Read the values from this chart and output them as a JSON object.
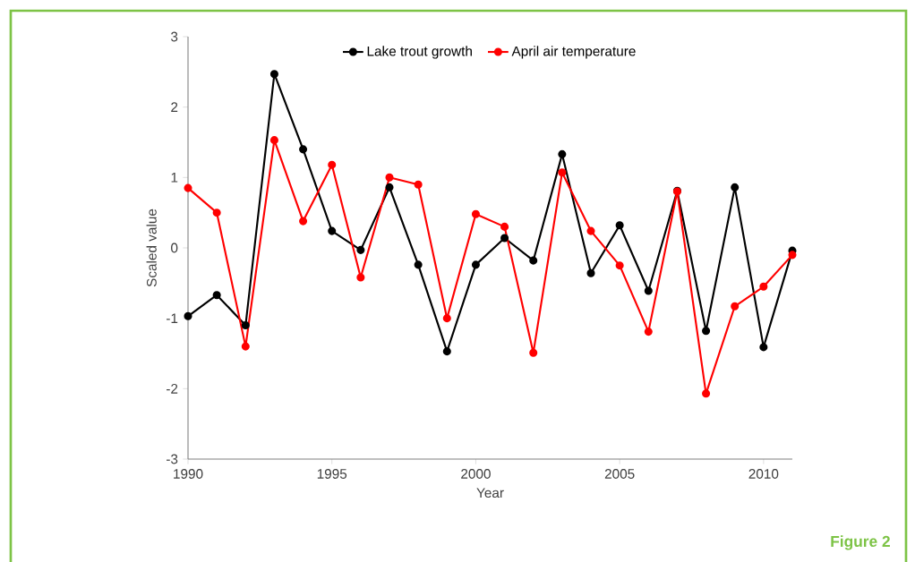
{
  "chart_data": {
    "type": "line",
    "xlabel": "Year",
    "ylabel": "Scaled value",
    "x": [
      1990,
      1991,
      1992,
      1993,
      1994,
      1995,
      1996,
      1997,
      1998,
      1999,
      2000,
      2001,
      2002,
      2003,
      2004,
      2005,
      2006,
      2007,
      2008,
      2009,
      2010,
      2011
    ],
    "series": [
      {
        "name": "Lake trout growth",
        "color": "#000000",
        "values": [
          -0.97,
          -0.67,
          -1.1,
          2.47,
          1.4,
          0.24,
          -0.03,
          0.86,
          -0.24,
          -1.47,
          -0.24,
          0.14,
          -0.18,
          1.33,
          -0.36,
          0.32,
          -0.61,
          0.81,
          -1.18,
          0.86,
          -1.41,
          -0.04
        ]
      },
      {
        "name": "April air temperature",
        "color": "#ff0000",
        "values": [
          0.85,
          0.5,
          -1.4,
          1.53,
          0.38,
          1.18,
          -0.42,
          1.0,
          0.9,
          -1.0,
          0.48,
          0.3,
          -1.49,
          1.07,
          0.24,
          -0.25,
          -1.19,
          0.8,
          -2.07,
          -0.83,
          -0.55,
          -0.1
        ]
      }
    ],
    "xlim": [
      1990,
      2011
    ],
    "ylim": [
      -3,
      3
    ],
    "xticks": [
      1990,
      1995,
      2000,
      2005,
      2010
    ],
    "yticks": [
      -3,
      -2,
      -1,
      0,
      1,
      2,
      3
    ],
    "marker": "circle",
    "legend": "top",
    "grid": false,
    "annotations": [
      "Figure 2"
    ]
  }
}
